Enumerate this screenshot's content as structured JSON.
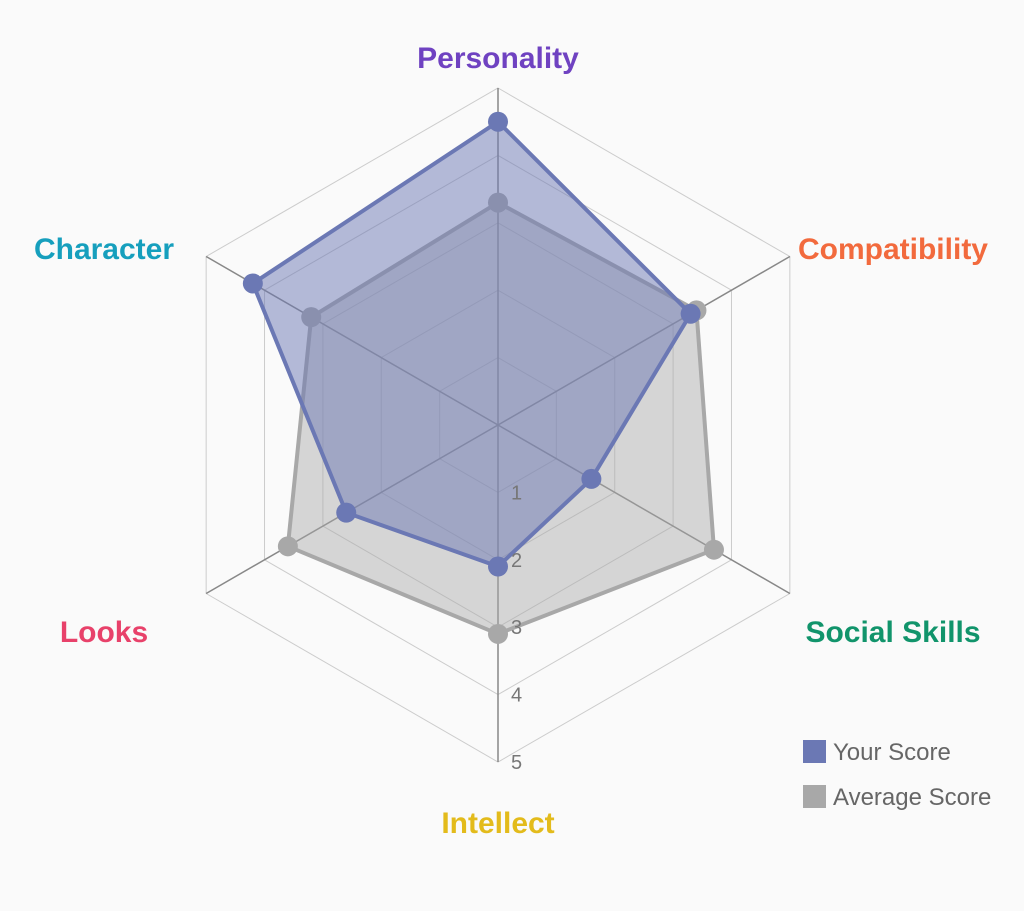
{
  "chart_data": {
    "type": "radar",
    "axes": [
      {
        "label": "Personality",
        "color": "#6f42c1"
      },
      {
        "label": "Compatibility",
        "color": "#f26a3d"
      },
      {
        "label": "Social Skills",
        "color": "#11946b"
      },
      {
        "label": "Intellect",
        "color": "#e3bb1b"
      },
      {
        "label": "Looks",
        "color": "#e8416a"
      },
      {
        "label": "Character",
        "color": "#169fbd"
      }
    ],
    "range": [
      0,
      5
    ],
    "ticks": [
      "1",
      "2",
      "3",
      "4",
      "5"
    ],
    "series": [
      {
        "name": "Your Score",
        "values": [
          4.5,
          3.3,
          1.6,
          2.1,
          2.6,
          4.2
        ],
        "color": "#6b78b4"
      },
      {
        "name": "Average Score",
        "values": [
          3.3,
          3.4,
          3.7,
          3.1,
          3.6,
          3.2
        ],
        "color": "#a8a8a8"
      }
    ],
    "legend_position": "bottom-right",
    "grid": true
  }
}
